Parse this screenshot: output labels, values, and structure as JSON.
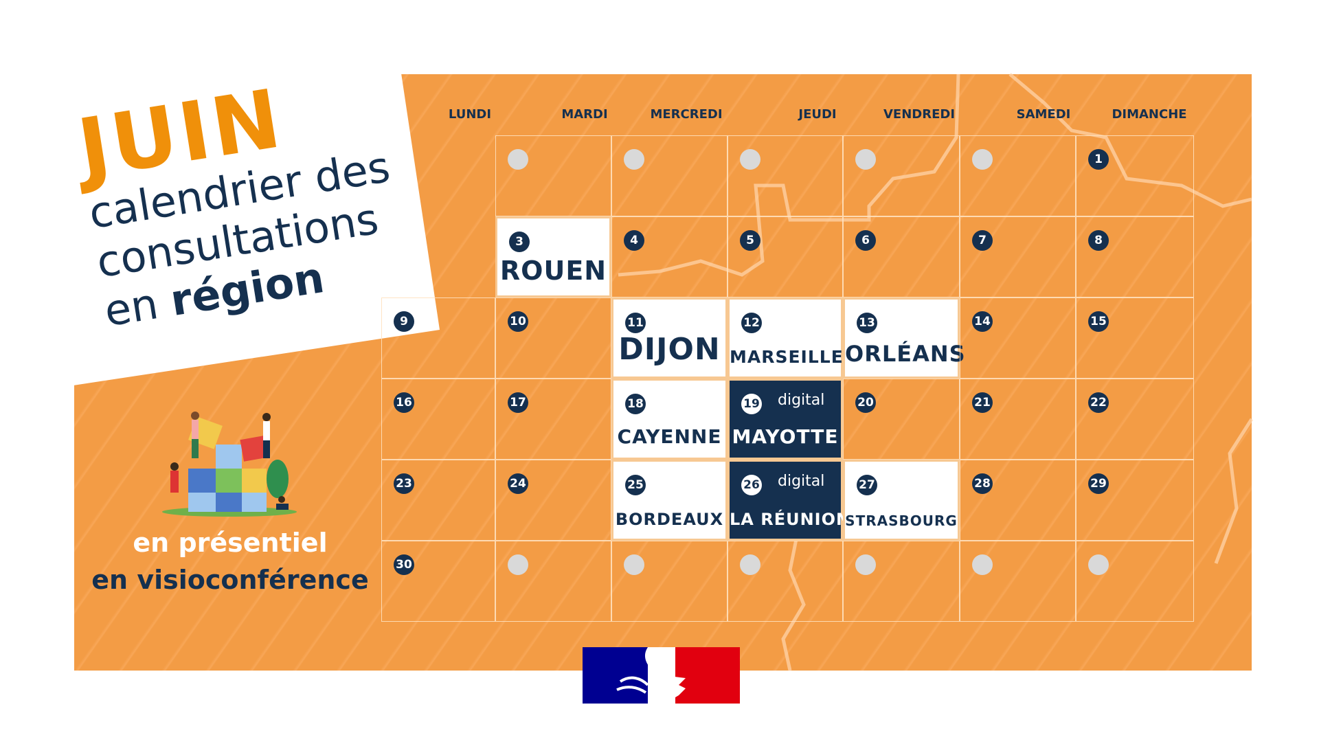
{
  "title": {
    "month": "JUIN",
    "line1": "calendrier des",
    "line2": "consultations",
    "line3_prefix": "en",
    "line3_bold": "région"
  },
  "weekdays": [
    "LUNDI",
    "MARDI",
    "MERCREDI",
    "JEUDI",
    "VENDREDI",
    "SAMEDI",
    "DIMANCHE"
  ],
  "calendar": {
    "leading_empty": 6,
    "days_in_month": 30,
    "events": [
      {
        "day": 3,
        "city": "ROUEN",
        "style": "white"
      },
      {
        "day": 11,
        "city": "DIJON",
        "style": "white"
      },
      {
        "day": 12,
        "city": "MARSEILLE",
        "style": "white"
      },
      {
        "day": 13,
        "city": "ORLÉANS",
        "style": "white"
      },
      {
        "day": 18,
        "city": "CAYENNE",
        "style": "white"
      },
      {
        "day": 19,
        "city": "MAYOTTE",
        "style": "navy",
        "tag": "digital"
      },
      {
        "day": 25,
        "city": "BORDEAUX",
        "style": "white"
      },
      {
        "day": 26,
        "city": "LA RÉUNION",
        "style": "navy",
        "tag": "digital"
      },
      {
        "day": 27,
        "city": "STRASBOURG",
        "style": "white"
      }
    ]
  },
  "legend": {
    "in_person": "en présentiel",
    "video": "en visioconférence"
  },
  "colors": {
    "orange": "#f39c45",
    "navy": "#15304f",
    "title_orange": "#f0900a",
    "legend_white": "#ffffff",
    "logo_blue": "#000091",
    "logo_red": "#e1000f"
  }
}
